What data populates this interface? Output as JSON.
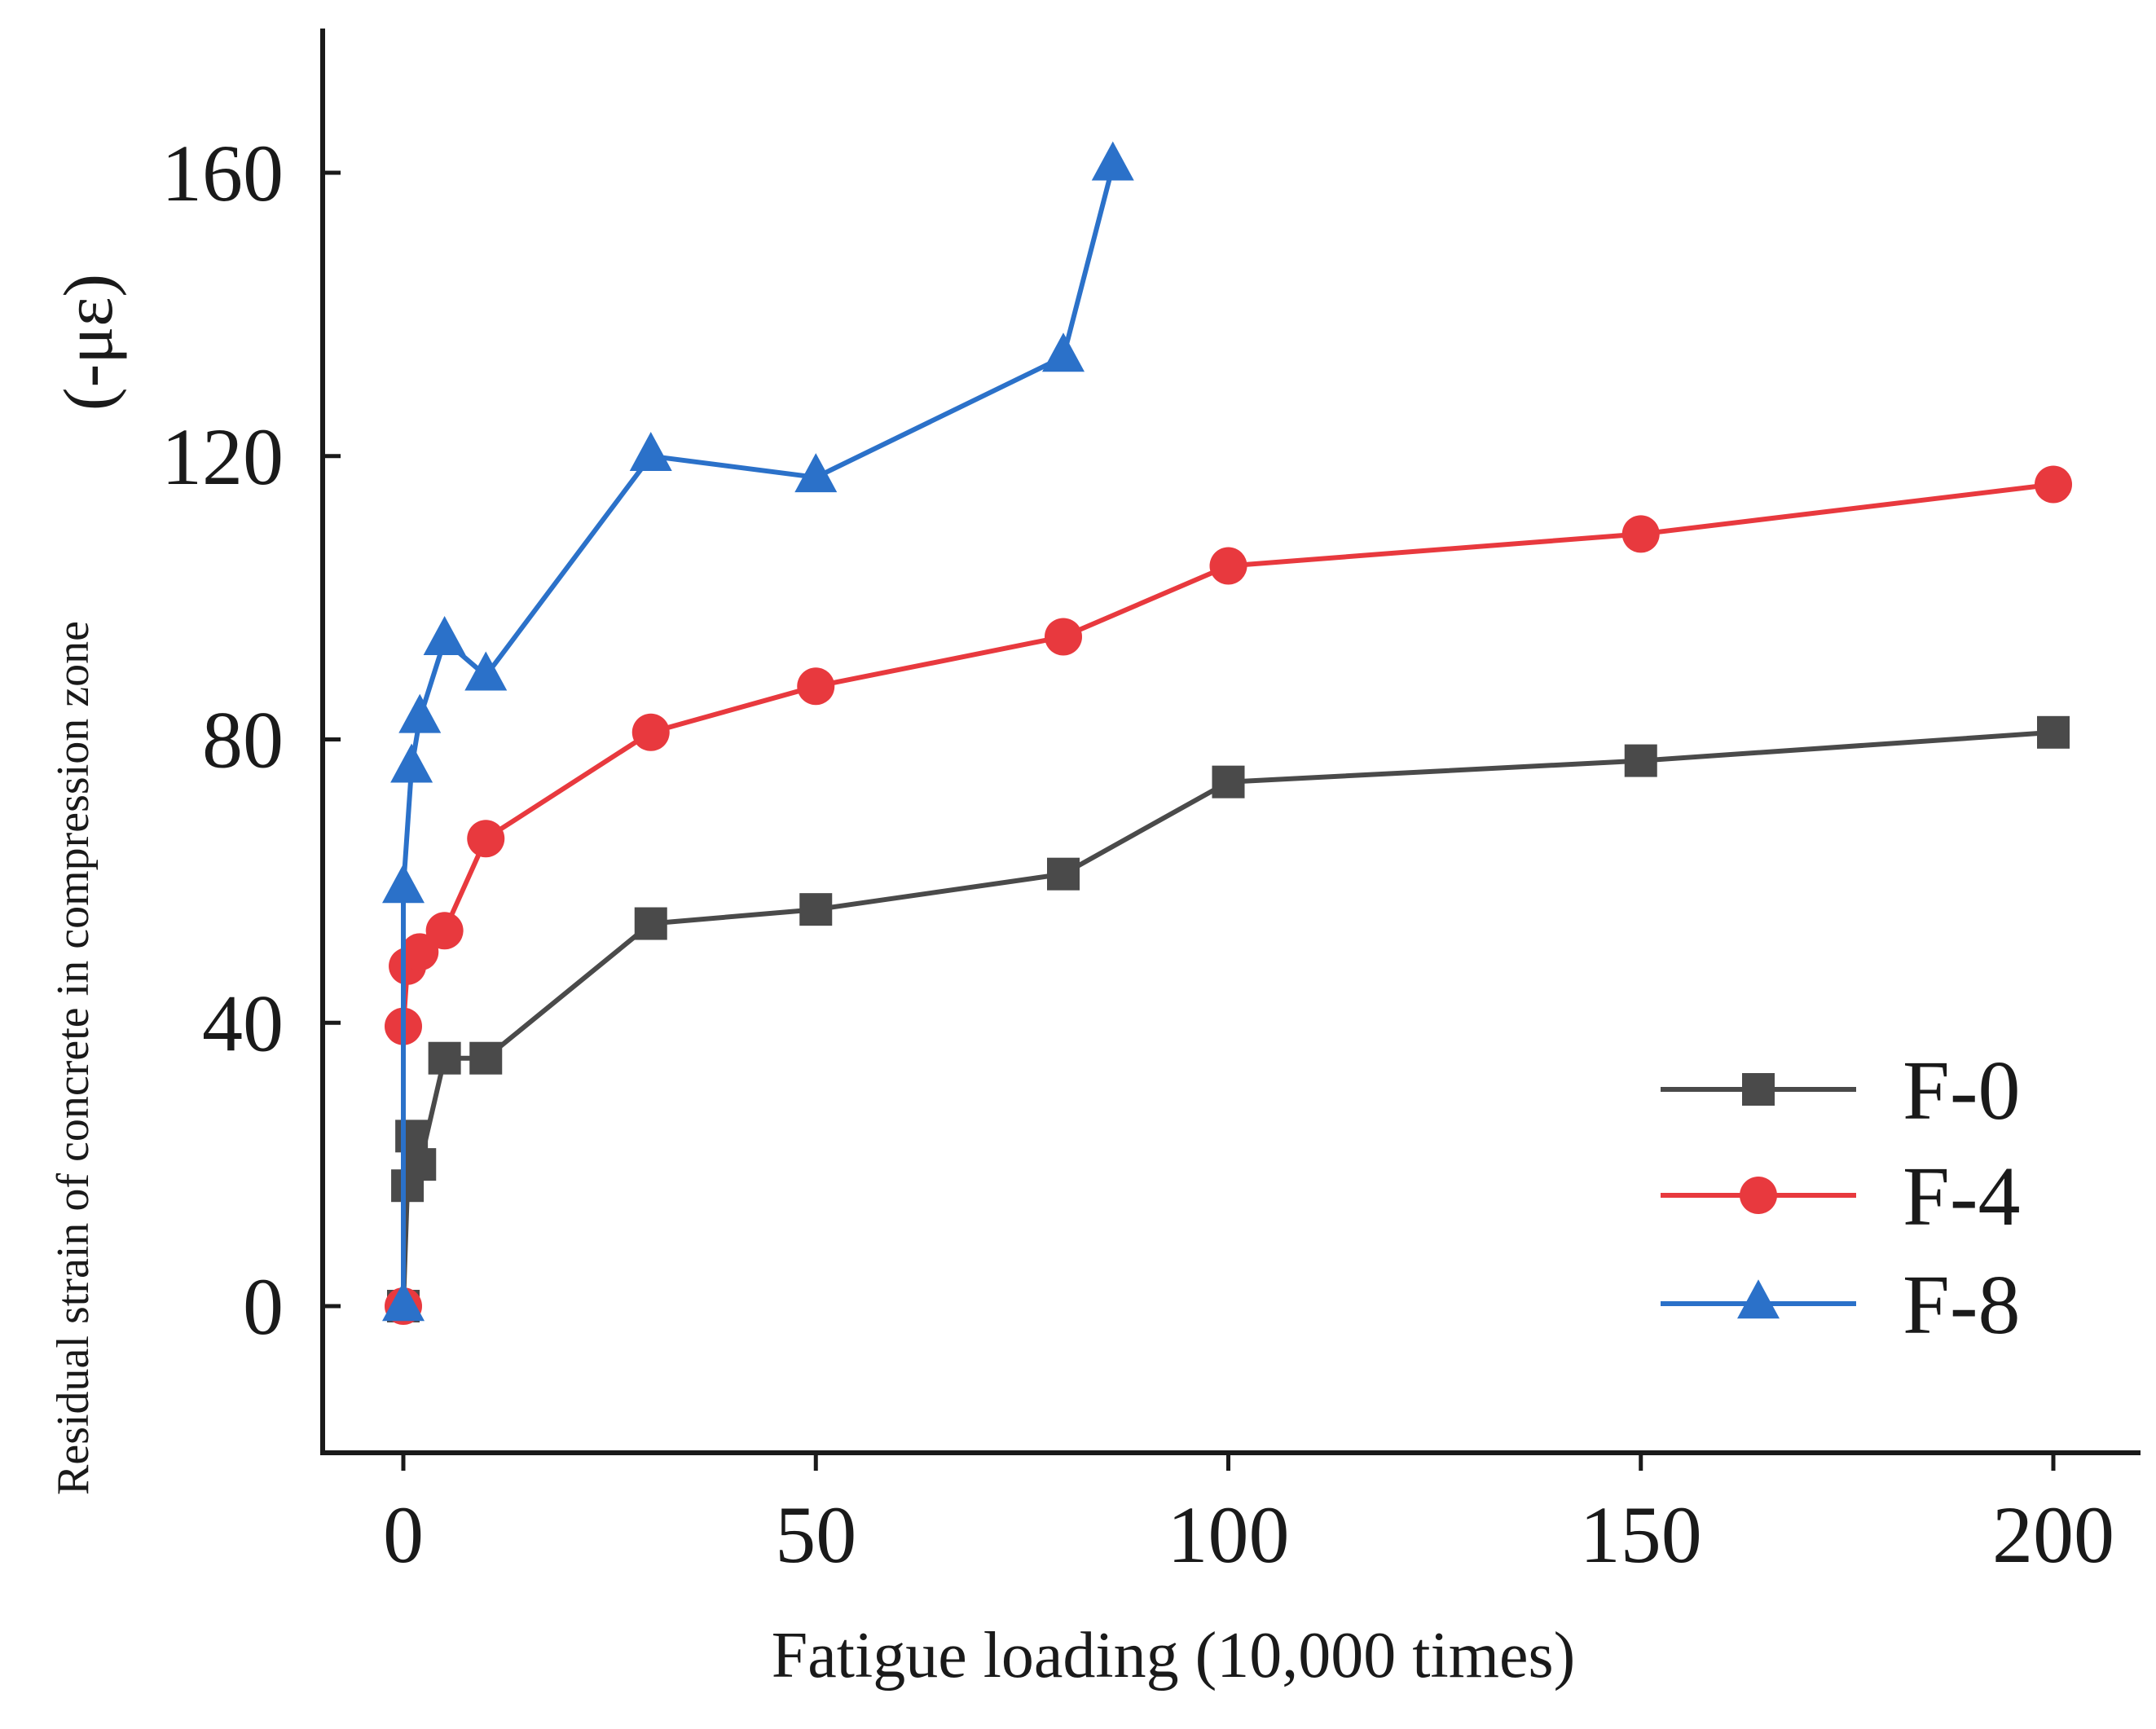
{
  "chart_data": {
    "type": "line",
    "title": "",
    "xlabel": "Fatigue loading (10,000 times)",
    "ylabel": "Residual strain of concrete in compression zone",
    "ylabel_unit": "(-με)",
    "xlim": [
      -10,
      210
    ],
    "ylim": [
      -20,
      180
    ],
    "xticks": [
      0,
      50,
      100,
      150,
      200
    ],
    "yticks": [
      0,
      40,
      80,
      120,
      160
    ],
    "xtick_labels": [
      "0",
      "50",
      "100",
      "150",
      "200"
    ],
    "ytick_labels": [
      "0",
      "40",
      "80",
      "120",
      "160"
    ],
    "grid": false,
    "legend_position": "bottom-right",
    "series": [
      {
        "name": "F-0",
        "color": "#4a4a4a",
        "marker": "square",
        "x": [
          0,
          0.5,
          1,
          2,
          5,
          10,
          30,
          50,
          80,
          100,
          150,
          200
        ],
        "y": [
          0,
          17,
          24,
          20,
          35,
          35,
          54,
          56,
          61,
          74,
          77,
          81
        ]
      },
      {
        "name": "F-4",
        "color": "#e8393e",
        "marker": "circle",
        "x": [
          0,
          0,
          0.5,
          2,
          5,
          10,
          30,
          50,
          80,
          100,
          150,
          200
        ],
        "y": [
          0,
          39.5,
          48,
          50,
          53,
          66,
          81,
          87.5,
          94.5,
          104.5,
          109,
          116
        ]
      },
      {
        "name": "F-8",
        "color": "#2b71c9",
        "marker": "triangle",
        "x": [
          0,
          0,
          1,
          2,
          5,
          10,
          30,
          50,
          80,
          86
        ],
        "y": [
          0,
          59,
          76,
          83,
          94,
          89,
          120,
          117,
          134,
          161
        ]
      }
    ]
  }
}
